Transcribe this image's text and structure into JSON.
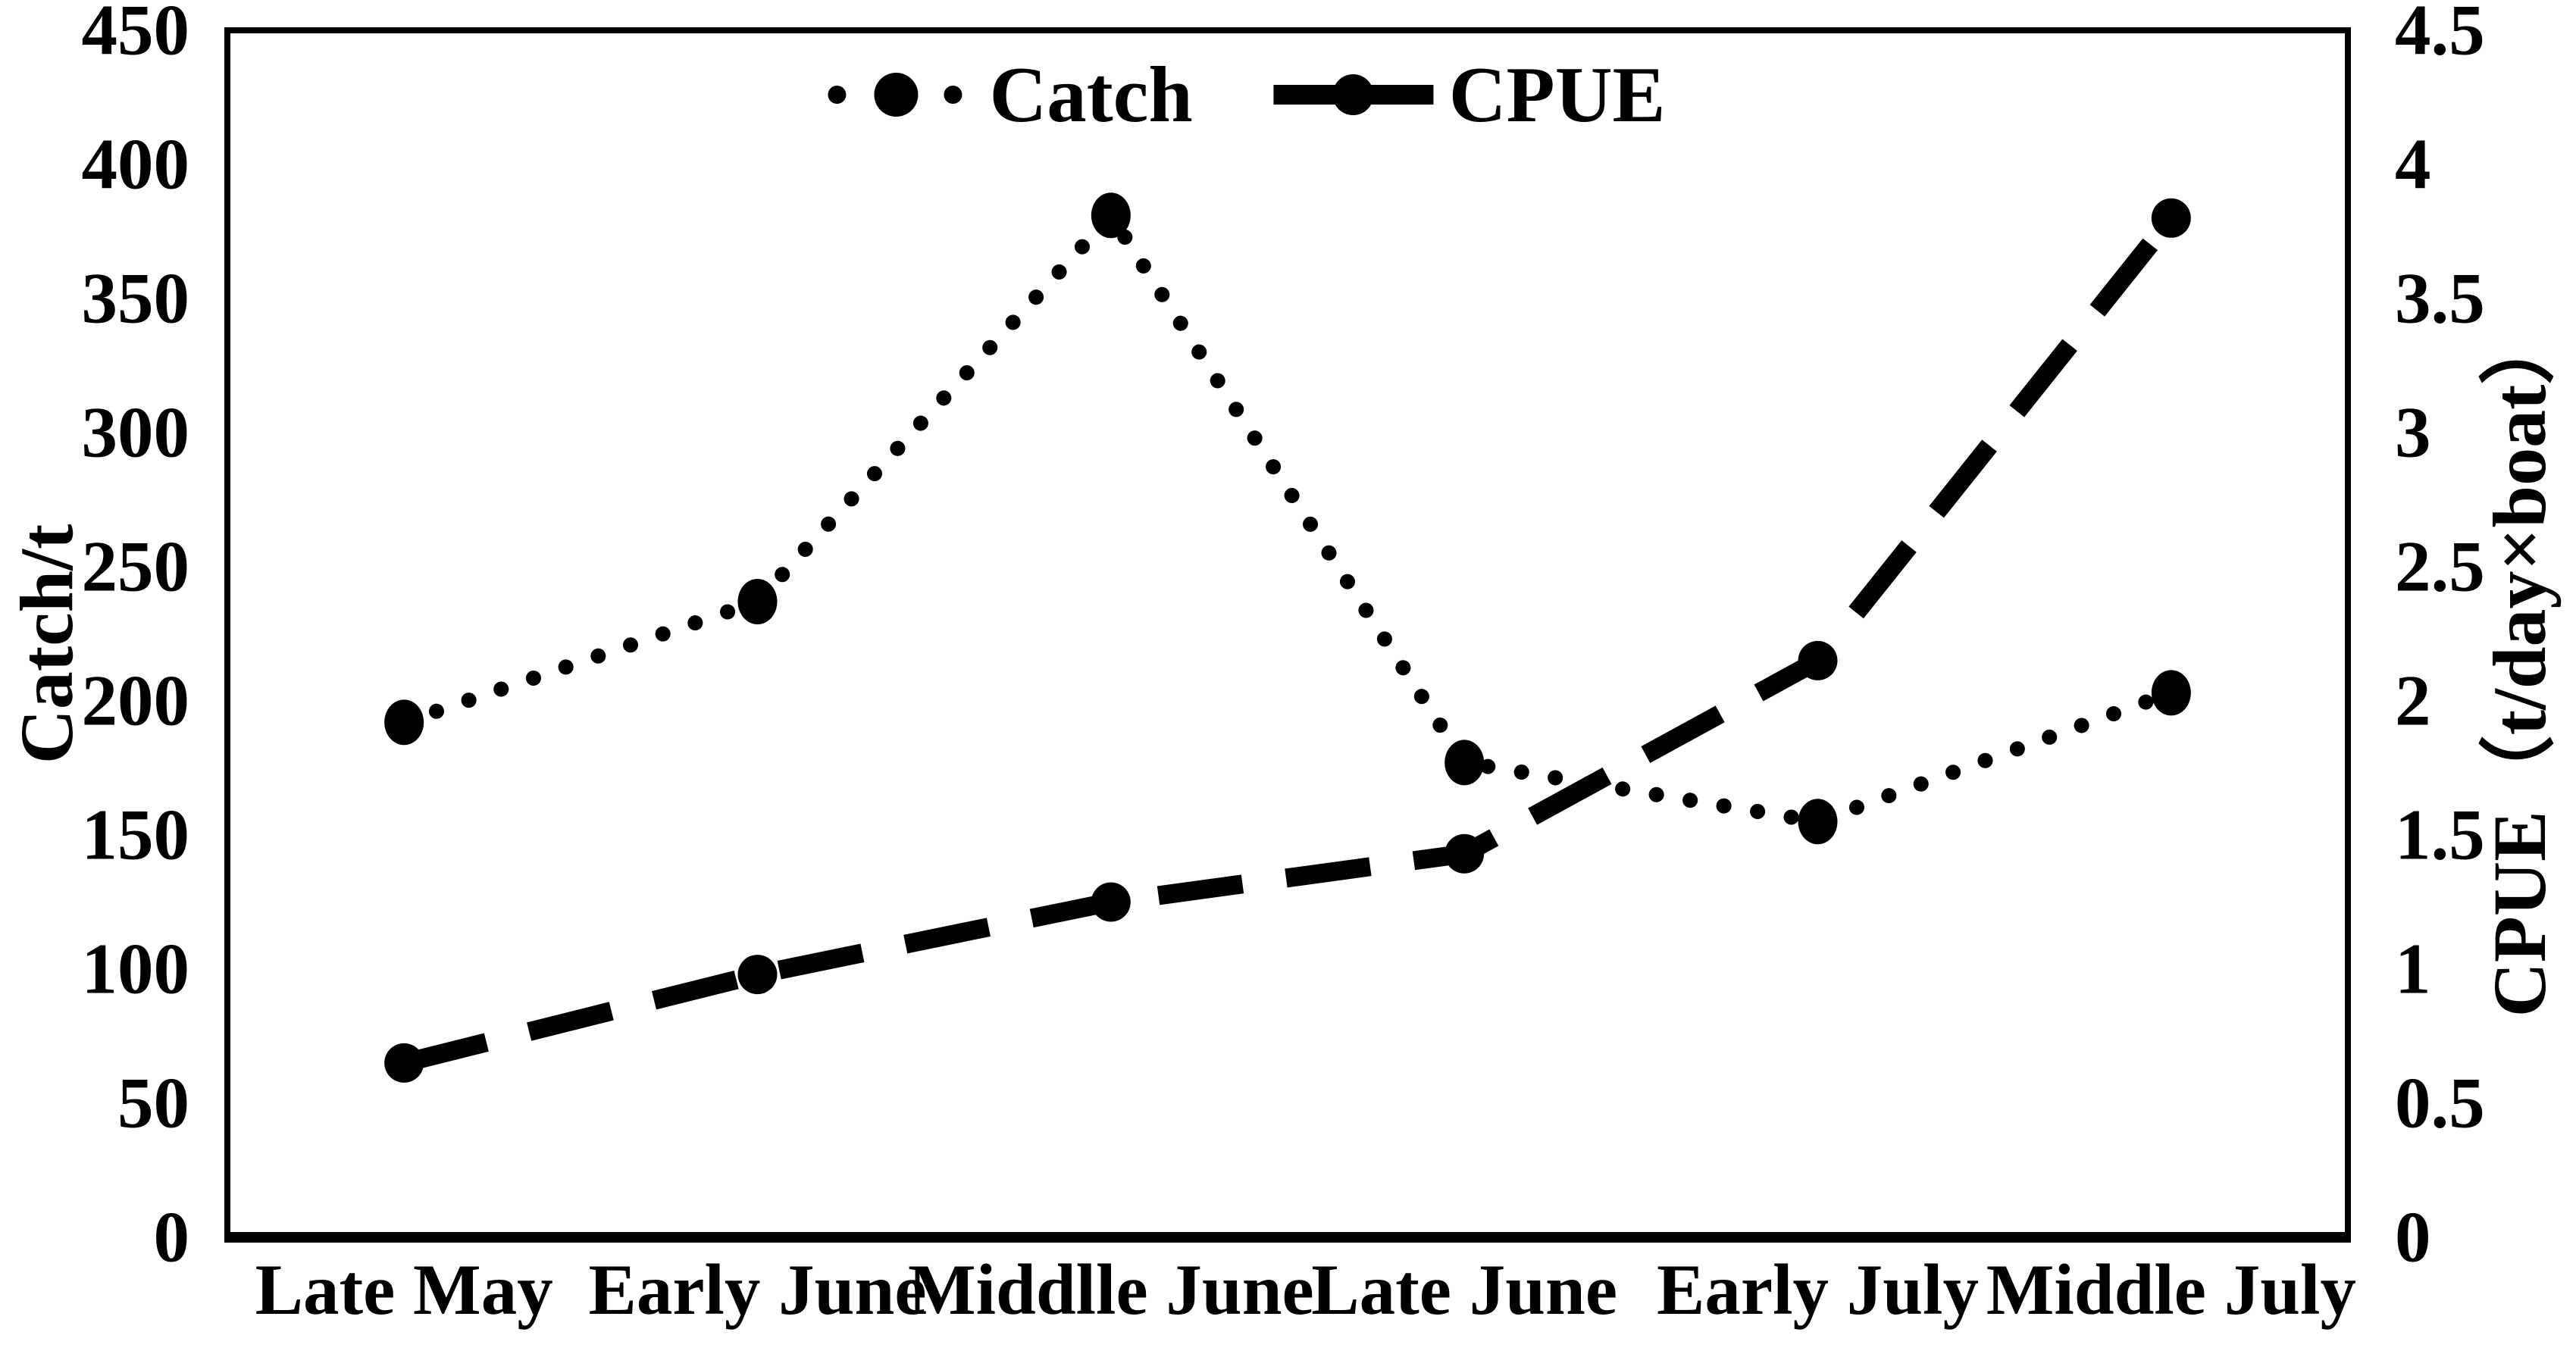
{
  "colors": {
    "line": "#000000",
    "text": "#000000",
    "background": "#ffffff"
  },
  "chart_data": {
    "type": "line",
    "title": "",
    "grid": false,
    "categories": [
      "Late May",
      "Early June",
      "Middlle June",
      "Late June",
      "Early July",
      "Middle July"
    ],
    "series": [
      {
        "name": "Catch",
        "axis": "left",
        "style": "dotted",
        "marker": "circle",
        "values": [
          192,
          237,
          381,
          177,
          155,
          203
        ]
      },
      {
        "name": "CPUE",
        "axis": "right",
        "style": "long-dash",
        "marker": "circle",
        "values": [
          0.65,
          0.98,
          1.25,
          1.43,
          2.15,
          3.8
        ]
      }
    ],
    "left_axis": {
      "label": "Catch/t",
      "min": 0,
      "max": 450,
      "step": 50,
      "ticks": [
        "450",
        "400",
        "350",
        "300",
        "250",
        "200",
        "150",
        "100",
        "50",
        "0"
      ]
    },
    "right_axis": {
      "label": "CPUE（t/day×boat）",
      "min": 0,
      "max": 4.5,
      "step": 0.5,
      "ticks": [
        "4.5",
        "4",
        "3.5",
        "3",
        "2.5",
        "2",
        "1.5",
        "1",
        "0.5",
        "0"
      ]
    },
    "legend": {
      "position": "top-center",
      "entries": [
        "Catch",
        "CPUE"
      ]
    }
  }
}
